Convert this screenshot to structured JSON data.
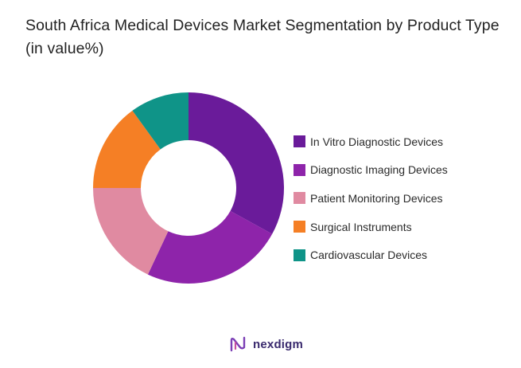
{
  "title": "South Africa Medical Devices Market Segmentation by Product Type (in value%)",
  "brand": {
    "name": "nexdigm",
    "logo_icon": "nexdigm-logo-icon"
  },
  "chart_data": {
    "type": "pie",
    "donut": true,
    "title": "South Africa Medical Devices Market Segmentation by Product Type (in value%)",
    "legend_position": "right",
    "series": [
      {
        "name": "In Vitro Diagnostic Devices",
        "value": 33,
        "color": "#6a1b9a"
      },
      {
        "name": "Diagnostic Imaging Devices",
        "value": 24,
        "color": "#8e24aa"
      },
      {
        "name": "Patient Monitoring Devices",
        "value": 18,
        "color": "#e08aa1"
      },
      {
        "name": "Surgical Instruments",
        "value": 15,
        "color": "#f57f25"
      },
      {
        "name": "Cardiovascular Devices",
        "value": 10,
        "color": "#0f9488"
      }
    ]
  }
}
